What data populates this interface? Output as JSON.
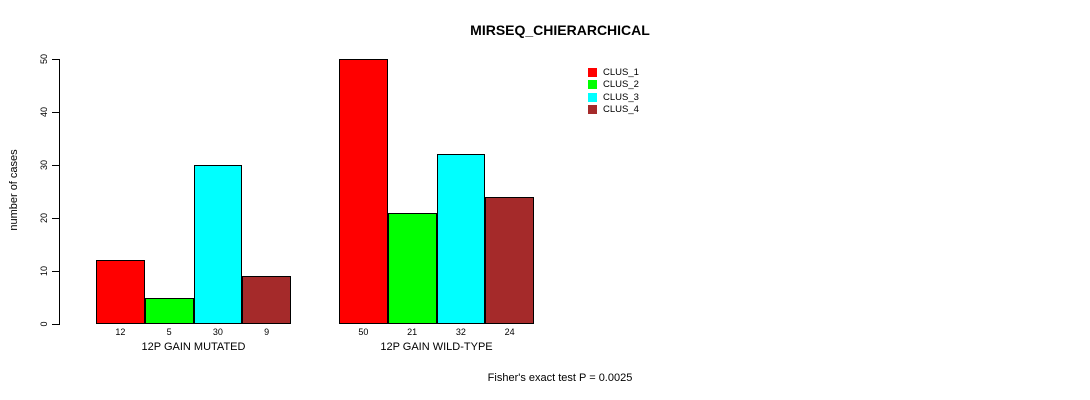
{
  "chart_data": {
    "type": "bar",
    "title": "MIRSEQ_CHIERARCHICAL",
    "ylabel": "number of cases",
    "xlabel": "",
    "ylim": [
      0,
      50
    ],
    "yticks": [
      0,
      10,
      20,
      30,
      40,
      50
    ],
    "categories": [
      "12P GAIN MUTATED",
      "12P GAIN WILD-TYPE"
    ],
    "series": [
      {
        "name": "CLUS_1",
        "color": "#FF0000",
        "values": [
          12,
          50
        ]
      },
      {
        "name": "CLUS_2",
        "color": "#00FF00",
        "values": [
          5,
          21
        ]
      },
      {
        "name": "CLUS_3",
        "color": "#00FFFF",
        "values": [
          30,
          32
        ]
      },
      {
        "name": "CLUS_4",
        "color": "#A52A2A",
        "values": [
          9,
          24
        ]
      }
    ],
    "bar_value_labels": [
      [
        "12",
        "5",
        "30",
        "9"
      ],
      [
        "50",
        "21",
        "32",
        "24"
      ]
    ],
    "annotation": "Fisher's exact test P = 0.0025",
    "legend_position": "top-right",
    "grid": false,
    "axis_color": "#000000",
    "background_color": "#ffffff"
  }
}
